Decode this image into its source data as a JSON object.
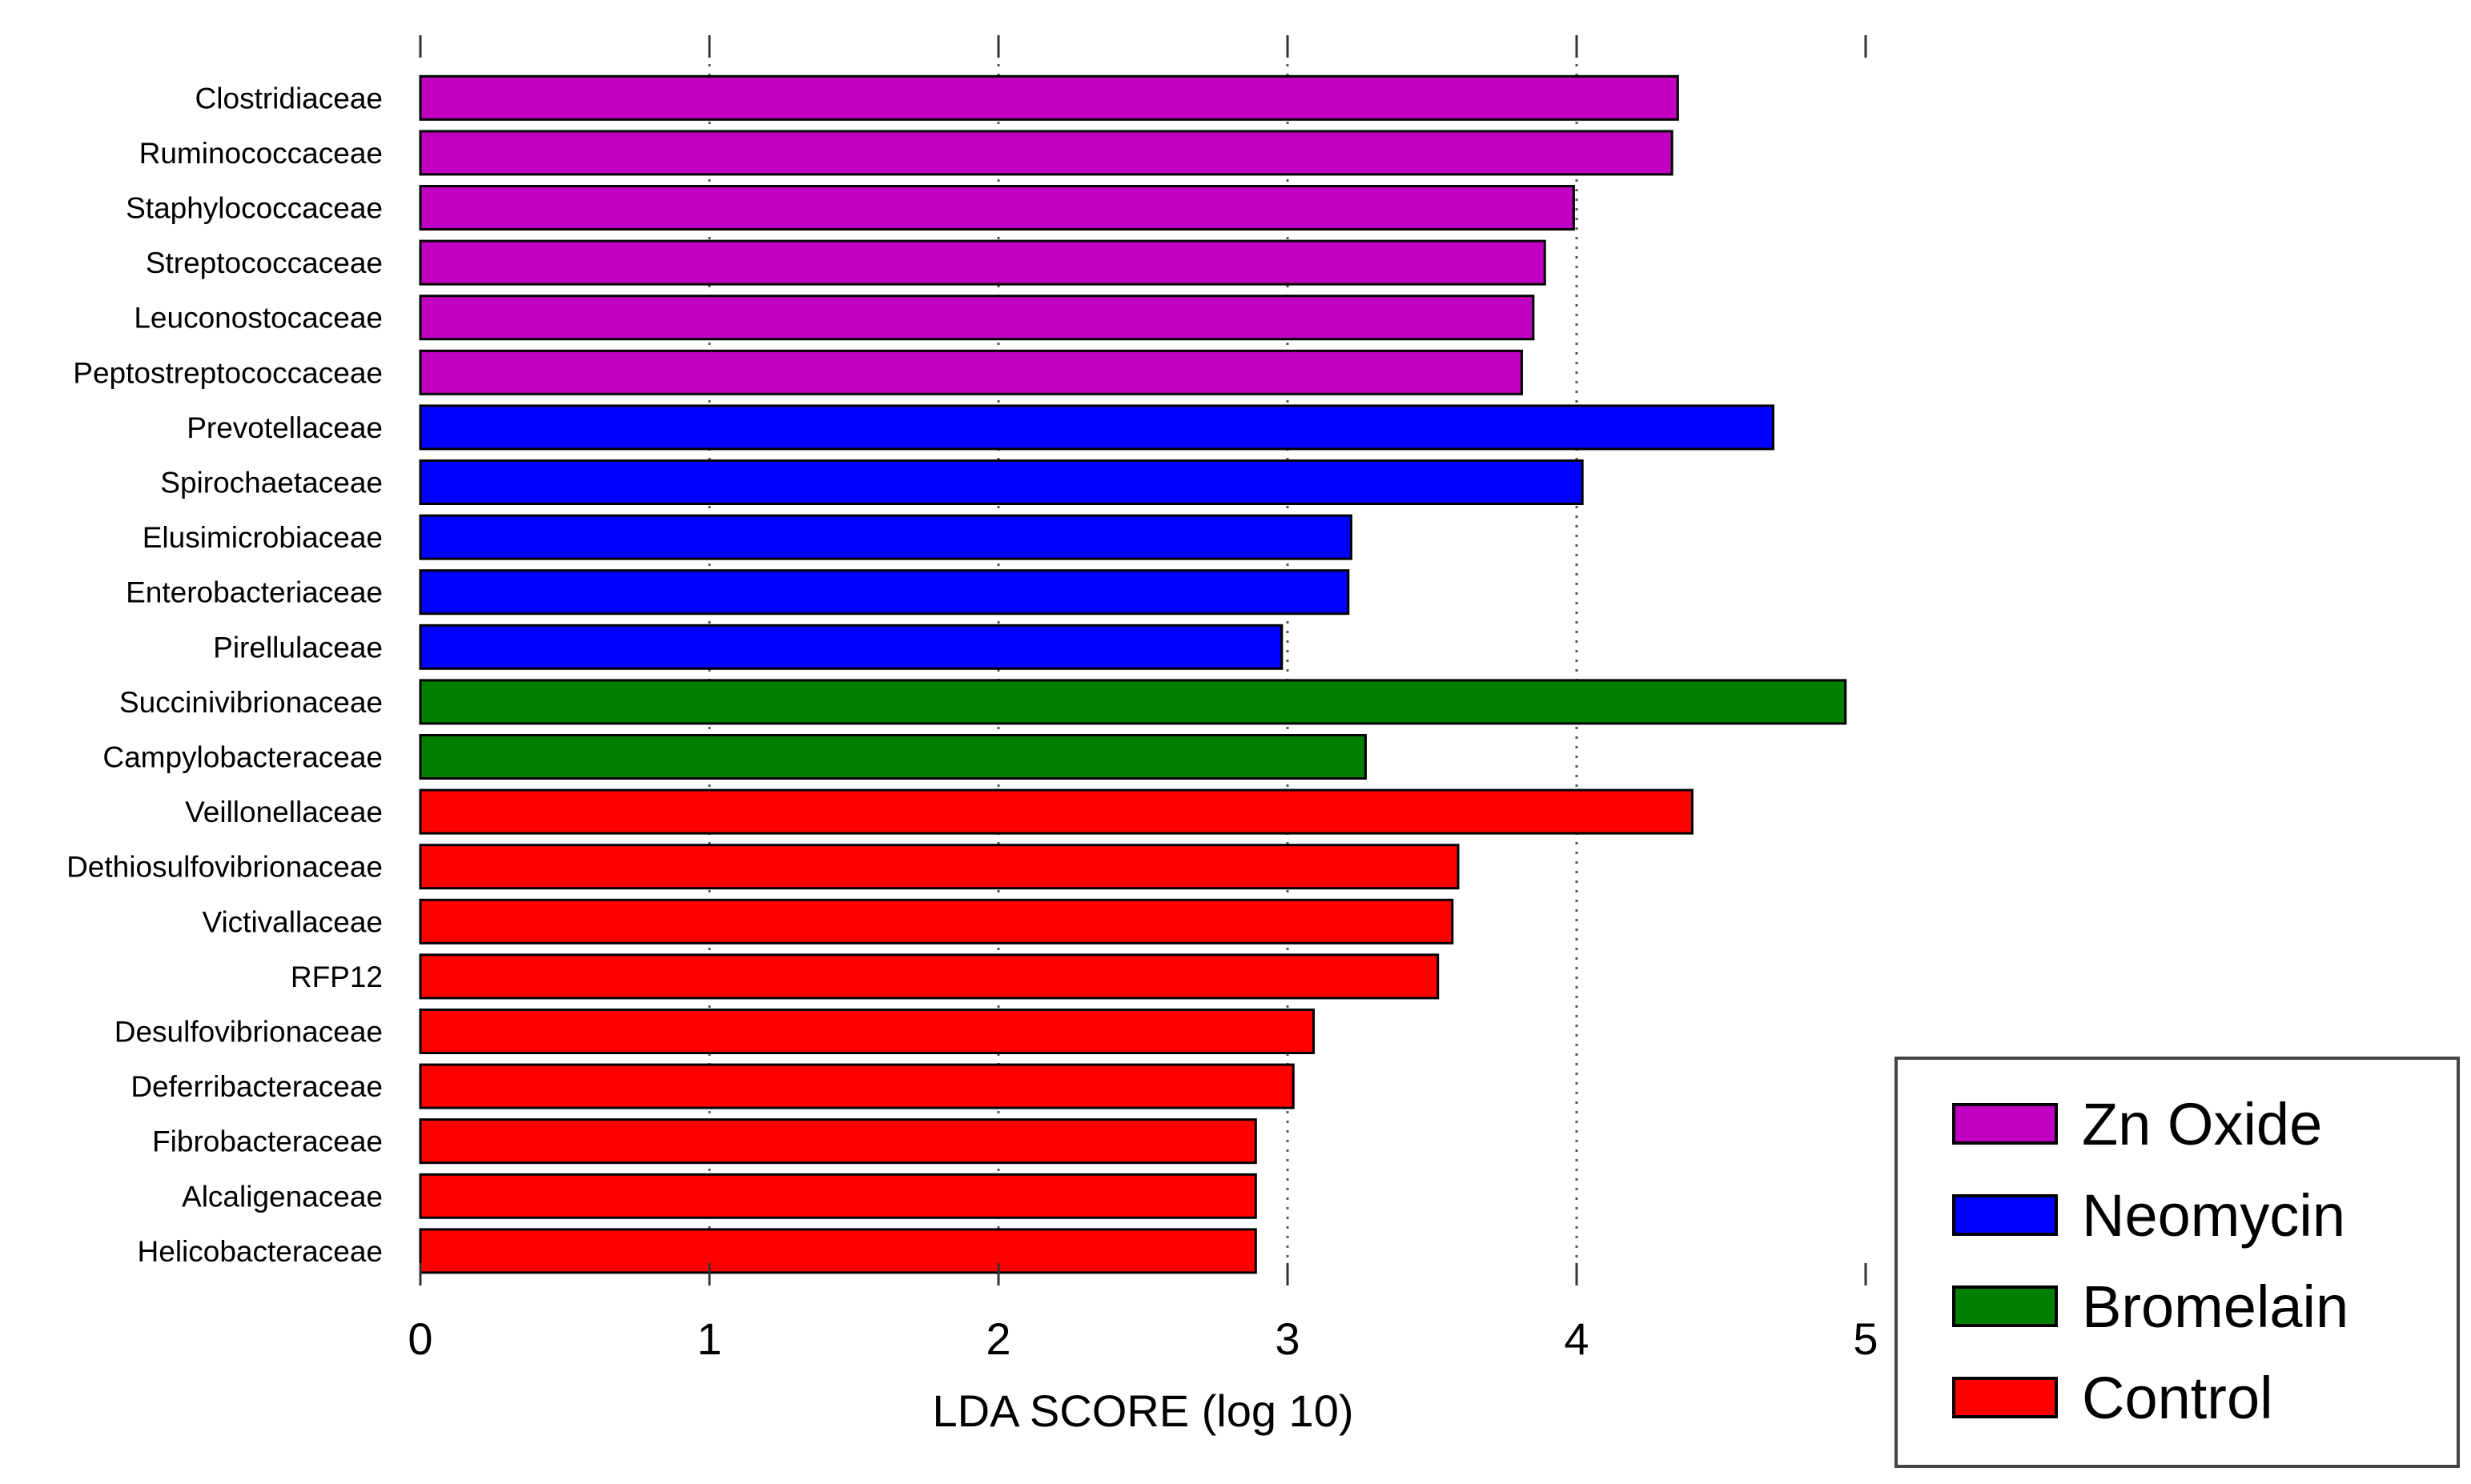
{
  "chart_data": {
    "type": "bar",
    "orientation": "horizontal",
    "title": "",
    "xlabel": "LDA SCORE (log 10)",
    "ylabel": "",
    "xlim": [
      0,
      5
    ],
    "xticks": [
      "0",
      "1",
      "2",
      "3",
      "4",
      "5"
    ],
    "grid": "vertical dotted lines at x ticks",
    "legend_position": "bottom-right",
    "categories": [
      "Clostridiaceae",
      "Ruminococcaceae",
      "Staphylococcaceae",
      "Streptococcaceae",
      "Leuconostocaceae",
      "Peptostreptococcaceae",
      "Prevotellaceae",
      "Spirochaetaceae",
      "Elusimicrobiaceae",
      "Enterobacteriaceae",
      "Pirellulaceae",
      "Succinivibrionaceae",
      "Campylobacteraceae",
      "Veillonellaceae",
      "Dethiosulfovibrionaceae",
      "Victivallaceae",
      "RFP12",
      "Desulfovibrionaceae",
      "Deferribacteraceae",
      "Fibrobacteraceae",
      "Alcaligenaceae",
      "Helicobacteraceae"
    ],
    "values": [
      4.35,
      4.33,
      3.99,
      3.89,
      3.85,
      3.81,
      4.68,
      4.02,
      3.22,
      3.21,
      2.98,
      4.93,
      3.27,
      4.4,
      3.59,
      3.57,
      3.52,
      3.09,
      3.02,
      2.89,
      2.89,
      2.89
    ],
    "groups": [
      "Zn Oxide",
      "Zn Oxide",
      "Zn Oxide",
      "Zn Oxide",
      "Zn Oxide",
      "Zn Oxide",
      "Neomycin",
      "Neomycin",
      "Neomycin",
      "Neomycin",
      "Neomycin",
      "Bromelain",
      "Bromelain",
      "Control",
      "Control",
      "Control",
      "Control",
      "Control",
      "Control",
      "Control",
      "Control",
      "Control"
    ],
    "legend": [
      {
        "name": "Zn Oxide",
        "color": "#c000c0"
      },
      {
        "name": "Neomycin",
        "color": "#0000ff"
      },
      {
        "name": "Bromelain",
        "color": "#007f00"
      },
      {
        "name": "Control",
        "color": "#ff0000"
      }
    ]
  }
}
